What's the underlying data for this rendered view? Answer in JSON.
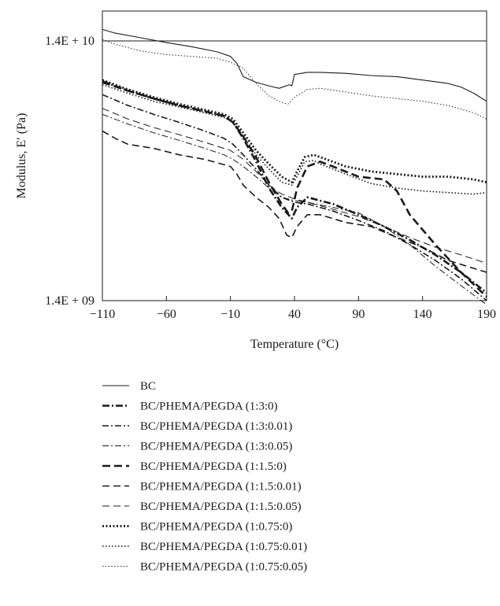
{
  "chart_data": {
    "type": "line",
    "xlabel": "Temperature (°C)",
    "ylabel": "Modulus, E′ (Pa)",
    "xlim": [
      -110,
      190
    ],
    "ylim": [
      1400000000,
      14000000000
    ],
    "yscale": "log",
    "xticks": [
      -110,
      -60,
      -10,
      40,
      90,
      140,
      190
    ],
    "xtick_labels": [
      "−110",
      "−60",
      "−10",
      "40",
      "90",
      "140",
      "190"
    ],
    "yticks": [
      1400000000,
      14000000000
    ],
    "ytick_labels": [
      "1.4E + 09",
      "1.4E + 10"
    ],
    "reference_line": 14000000000,
    "grid": false,
    "legend_position": "below",
    "series": [
      {
        "name": "BC",
        "style": "solid-thin",
        "x": [
          -110,
          -100,
          -80,
          -60,
          -40,
          -20,
          -10,
          -5,
          0,
          10,
          20,
          28,
          36,
          38,
          40,
          50,
          60,
          80,
          100,
          120,
          140,
          160,
          170,
          180,
          190
        ],
        "y": [
          15500000000,
          15000000000,
          14400000000,
          13800000000,
          13300000000,
          12700000000,
          12200000000,
          11500000000,
          10200000000,
          9700000000,
          9400000000,
          9200000000,
          9500000000,
          9400000000,
          10400000000,
          10600000000,
          10600000000,
          10500000000,
          10300000000,
          10200000000,
          9900000000,
          9600000000,
          9300000000,
          8800000000,
          8200000000
        ]
      },
      {
        "name": "BC/PHEMA/PEGDA (1:3:0)",
        "style": "dash-dot-heavy",
        "x": [
          -110,
          -90,
          -70,
          -50,
          -30,
          -15,
          -8,
          0,
          10,
          20,
          30,
          38,
          42,
          50,
          70,
          90,
          110,
          130,
          150,
          170,
          190
        ],
        "y": [
          9800000000,
          9000000000,
          8400000000,
          7900000000,
          7500000000,
          7200000000,
          6800000000,
          5900000000,
          4800000000,
          3800000000,
          3200000000,
          2900000000,
          3200000000,
          3500000000,
          3300000000,
          3000000000,
          2700000000,
          2400000000,
          2100000000,
          1800000000,
          1500000000
        ]
      },
      {
        "name": "BC/PHEMA/PEGDA (1:3:0.01)",
        "style": "dash-dot",
        "x": [
          -110,
          -90,
          -70,
          -50,
          -30,
          -15,
          -8,
          0,
          10,
          20,
          30,
          40,
          50,
          70,
          90,
          110,
          130,
          150,
          170,
          190
        ],
        "y": [
          8700000000,
          7900000000,
          7300000000,
          6800000000,
          6300000000,
          5900000000,
          5600000000,
          5100000000,
          4500000000,
          3900000000,
          3500000000,
          3350000000,
          3300000000,
          3100000000,
          2850000000,
          2600000000,
          2300000000,
          2000000000,
          1700000000,
          1400000000
        ]
      },
      {
        "name": "BC/PHEMA/PEGDA (1:3:0.05)",
        "style": "dash-dot-thin",
        "x": [
          -110,
          -90,
          -70,
          -50,
          -30,
          -15,
          -8,
          0,
          10,
          20,
          30,
          40,
          50,
          70,
          90,
          110,
          130,
          150,
          170,
          190
        ],
        "y": [
          7300000000,
          6700000000,
          6200000000,
          5800000000,
          5400000000,
          5100000000,
          4900000000,
          4600000000,
          4200000000,
          3800000000,
          3500000000,
          3400000000,
          3350000000,
          3200000000,
          3050000000,
          2700000000,
          2300000000,
          1900000000,
          1600000000,
          1350000000
        ]
      },
      {
        "name": "BC/PHEMA/PEGDA (1:1.5:0)",
        "style": "dash-heavy",
        "x": [
          -110,
          -90,
          -70,
          -50,
          -30,
          -15,
          -8,
          0,
          10,
          20,
          30,
          35,
          38,
          42,
          50,
          60,
          70,
          90,
          110,
          120,
          130,
          150,
          170,
          190
        ],
        "y": [
          9700000000,
          9000000000,
          8400000000,
          7900000000,
          7500000000,
          7200000000,
          6800000000,
          6000000000,
          5000000000,
          4000000000,
          3300000000,
          3050000000,
          3100000000,
          3800000000,
          4600000000,
          4800000000,
          4600000000,
          4200000000,
          4100000000,
          3700000000,
          3000000000,
          2300000000,
          1800000000,
          1450000000
        ]
      },
      {
        "name": "BC/PHEMA/PEGDA (1:1.5:0.01)",
        "style": "dash",
        "x": [
          -110,
          -100,
          -90,
          -70,
          -50,
          -30,
          -10,
          -5,
          0,
          10,
          20,
          28,
          34,
          38,
          42,
          50,
          60,
          80,
          100,
          120,
          140,
          160,
          190
        ],
        "y": [
          6300000000,
          5900000000,
          5600000000,
          5400000000,
          5100000000,
          4900000000,
          4600000000,
          4300000000,
          3900000000,
          3500000000,
          3200000000,
          2900000000,
          2500000000,
          2450000000,
          2700000000,
          3000000000,
          3000000000,
          2800000000,
          2700000000,
          2450000000,
          2250000000,
          2000000000,
          1800000000
        ]
      },
      {
        "name": "BC/PHEMA/PEGDA (1:1.5:0.05)",
        "style": "dash-thin",
        "x": [
          -110,
          -90,
          -70,
          -50,
          -30,
          -10,
          0,
          10,
          20,
          30,
          40,
          50,
          70,
          90,
          110,
          130,
          150,
          170,
          190
        ],
        "y": [
          7700000000,
          7000000000,
          6500000000,
          6100000000,
          5700000000,
          5300000000,
          4900000000,
          4400000000,
          3900000000,
          3600000000,
          3450000000,
          3350000000,
          3150000000,
          2950000000,
          2700000000,
          2450000000,
          2250000000,
          2100000000,
          1950000000
        ]
      },
      {
        "name": "BC/PHEMA/PEGDA (1:0.75:0)",
        "style": "dot-heavy",
        "x": [
          -110,
          -90,
          -70,
          -50,
          -30,
          -15,
          -8,
          0,
          10,
          20,
          30,
          38,
          42,
          48,
          55,
          60,
          80,
          100,
          120,
          140,
          160,
          180,
          190
        ],
        "y": [
          9900000000,
          9100000000,
          8500000000,
          8000000000,
          7600000000,
          7300000000,
          7000000000,
          6200000000,
          5300000000,
          4700000000,
          4200000000,
          4000000000,
          4400000000,
          5000000000,
          5100000000,
          5000000000,
          4600000000,
          4400000000,
          4300000000,
          4200000000,
          4200000000,
          4100000000,
          4000000000
        ]
      },
      {
        "name": "BC/PHEMA/PEGDA (1:0.75:0.01)",
        "style": "dot",
        "x": [
          -110,
          -90,
          -70,
          -50,
          -30,
          -15,
          -8,
          0,
          10,
          20,
          30,
          38,
          42,
          48,
          55,
          60,
          80,
          100,
          120,
          140,
          160,
          180,
          190
        ],
        "y": [
          9500000000,
          8800000000,
          8200000000,
          7800000000,
          7400000000,
          7100000000,
          6800000000,
          6000000000,
          5100000000,
          4500000000,
          4000000000,
          3900000000,
          4200000000,
          4800000000,
          4850000000,
          4700000000,
          4300000000,
          3950000000,
          3800000000,
          3700000000,
          3650000000,
          3600000000,
          3650000000
        ]
      },
      {
        "name": "BC/PHEMA/PEGDA (1:0.75:0.05)",
        "style": "dot-thin",
        "x": [
          -110,
          -100,
          -80,
          -60,
          -40,
          -20,
          -10,
          0,
          10,
          20,
          30,
          35,
          40,
          50,
          60,
          80,
          100,
          120,
          140,
          160,
          180,
          190
        ],
        "y": [
          14200000000,
          13600000000,
          12800000000,
          12400000000,
          12200000000,
          12000000000,
          11600000000,
          11000000000,
          9600000000,
          8600000000,
          8100000000,
          8000000000,
          8500000000,
          9100000000,
          9200000000,
          8900000000,
          8600000000,
          8400000000,
          8200000000,
          7900000000,
          7400000000,
          7000000000
        ]
      }
    ]
  }
}
